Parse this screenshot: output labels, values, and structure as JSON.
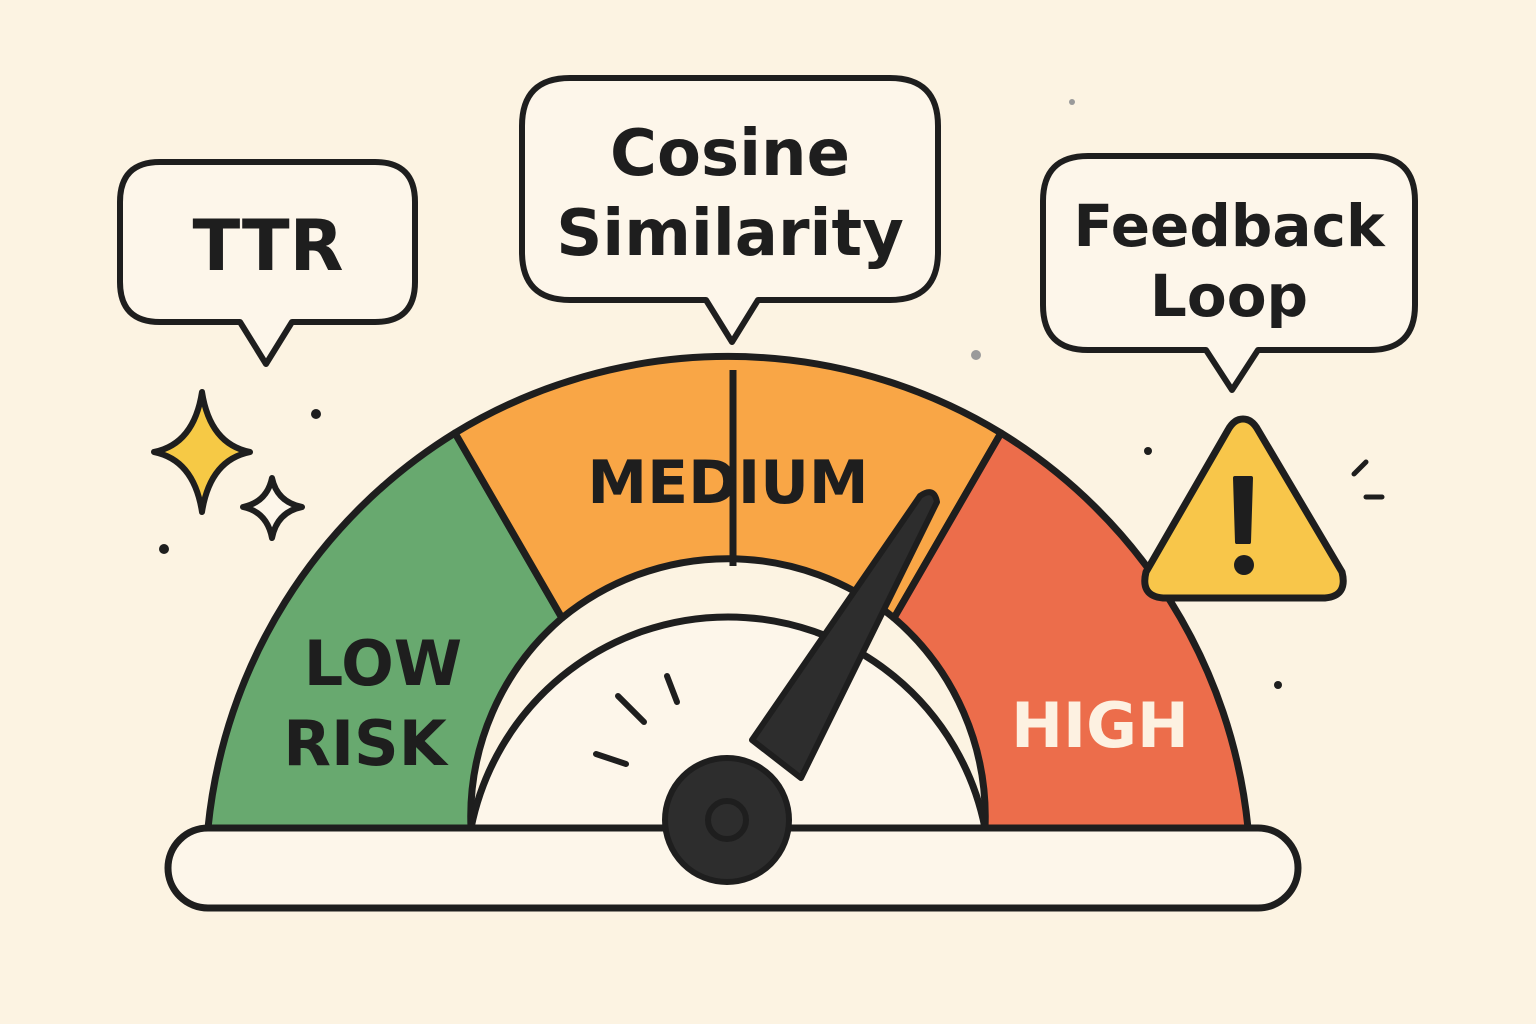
{
  "bubbles": {
    "left": {
      "lines": [
        "TTR"
      ]
    },
    "center": {
      "lines": [
        "Cosine",
        "Similarity"
      ]
    },
    "right": {
      "lines": [
        "Feedback",
        "Loop"
      ]
    }
  },
  "gauge": {
    "zones": [
      {
        "id": "low",
        "lines": [
          "LOW",
          "RISK"
        ],
        "color": "#68a96f",
        "text_color": "#1e1e1e"
      },
      {
        "id": "medium",
        "lines": [
          "MEDIUM"
        ],
        "color": "#f9a646",
        "text_color": "#1e1e1e"
      },
      {
        "id": "high",
        "lines": [
          "HIGH"
        ],
        "color": "#ec6d4b",
        "text_color": "#fdf1e1"
      }
    ],
    "needle_color": "#2d2d2d"
  },
  "colors": {
    "background": "#fcf3e2",
    "outline": "#1e1e1e",
    "sparkle": "#f6c945",
    "warning": "#f8c64a"
  },
  "icons": [
    "sparkle-icon",
    "warning-icon"
  ]
}
